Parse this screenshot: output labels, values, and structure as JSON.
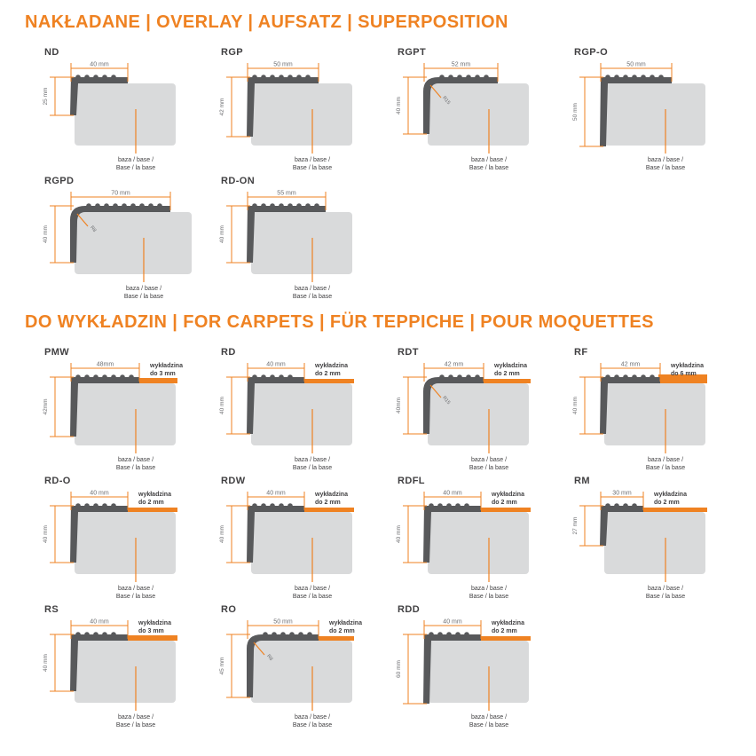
{
  "colors": {
    "accent": "#EF8222",
    "profile_dark": "#58595B",
    "base_gray": "#D9DADB",
    "label_dark": "#414042",
    "dim_text": "#6D6E71"
  },
  "common": {
    "base_caption_line1": "baza / base /",
    "base_caption_line2": "Base / la base",
    "carpet_word": "wykładzina"
  },
  "sections": [
    {
      "title": "NAKŁADANE | OVERLAY | AUFSATZ | SUPERPOSITION",
      "profiles": [
        {
          "name": "ND",
          "width_label": "40 mm",
          "height_label": "25 mm",
          "width_mm": 40,
          "height_mm": 25
        },
        {
          "name": "RGP",
          "width_label": "50 mm",
          "height_label": "42 mm",
          "width_mm": 50,
          "height_mm": 42
        },
        {
          "name": "RGPT",
          "width_label": "52 mm",
          "height_label": "40 mm",
          "width_mm": 52,
          "height_mm": 40,
          "radius_label": "R15",
          "rounded": true
        },
        {
          "name": "RGP-O",
          "width_label": "50 mm",
          "height_label": "50 mm",
          "width_mm": 50,
          "height_mm": 50
        },
        {
          "name": "RGPD",
          "width_label": "70 mm",
          "height_label": "40 mm",
          "width_mm": 70,
          "height_mm": 40,
          "radius_label": "R8",
          "rounded": true
        },
        {
          "name": "RD-ON",
          "width_label": "55 mm",
          "height_label": "40 mm",
          "width_mm": 55,
          "height_mm": 40
        }
      ]
    },
    {
      "title": "DO WYKŁADZIN | FOR CARPETS | FÜR TEPPICHE | POUR MOQUETTES",
      "profiles": [
        {
          "name": "PMW",
          "width_label": "48mm",
          "height_label": "42mm",
          "width_mm": 48,
          "height_mm": 42,
          "carpet_label": "do 3 mm",
          "carpet_mm": 3
        },
        {
          "name": "RD",
          "width_label": "40 mm",
          "height_label": "40 mm",
          "width_mm": 40,
          "height_mm": 40,
          "carpet_label": "do 2 mm",
          "carpet_mm": 2
        },
        {
          "name": "RDT",
          "width_label": "42 mm",
          "height_label": "40mm",
          "width_mm": 42,
          "height_mm": 40,
          "carpet_label": "do 2 mm",
          "carpet_mm": 2,
          "radius_label": "R15",
          "rounded": true
        },
        {
          "name": "RF",
          "width_label": "42 mm",
          "height_label": "40 mm",
          "width_mm": 42,
          "height_mm": 40,
          "carpet_label": "do 6 mm",
          "carpet_mm": 6
        },
        {
          "name": "RD-O",
          "width_label": "40 mm",
          "height_label": "40 mm",
          "width_mm": 40,
          "height_mm": 40,
          "carpet_label": "do 2 mm",
          "carpet_mm": 2
        },
        {
          "name": "RDW",
          "width_label": "40 mm",
          "height_label": "40 mm",
          "width_mm": 40,
          "height_mm": 40,
          "carpet_label": "do 2 mm",
          "carpet_mm": 2
        },
        {
          "name": "RDFL",
          "width_label": "40 mm",
          "height_label": "40 mm",
          "width_mm": 40,
          "height_mm": 40,
          "carpet_label": "do 2 mm",
          "carpet_mm": 2
        },
        {
          "name": "RM",
          "width_label": "30 mm",
          "height_label": "27 mm",
          "width_mm": 30,
          "height_mm": 27,
          "carpet_label": "do 2 mm",
          "carpet_mm": 2
        },
        {
          "name": "RS",
          "width_label": "40 mm",
          "height_label": "40 mm",
          "width_mm": 40,
          "height_mm": 40,
          "carpet_label": "do 3 mm",
          "carpet_mm": 3
        },
        {
          "name": "RO",
          "width_label": "50 mm",
          "height_label": "45 mm",
          "width_mm": 50,
          "height_mm": 45,
          "carpet_label": "do 2 mm",
          "carpet_mm": 2,
          "radius_label": "R8",
          "rounded": true
        },
        {
          "name": "RDD",
          "width_label": "40 mm",
          "height_label": "60 mm",
          "width_mm": 40,
          "height_mm": 60,
          "carpet_label": "do 2 mm",
          "carpet_mm": 2
        }
      ]
    }
  ]
}
